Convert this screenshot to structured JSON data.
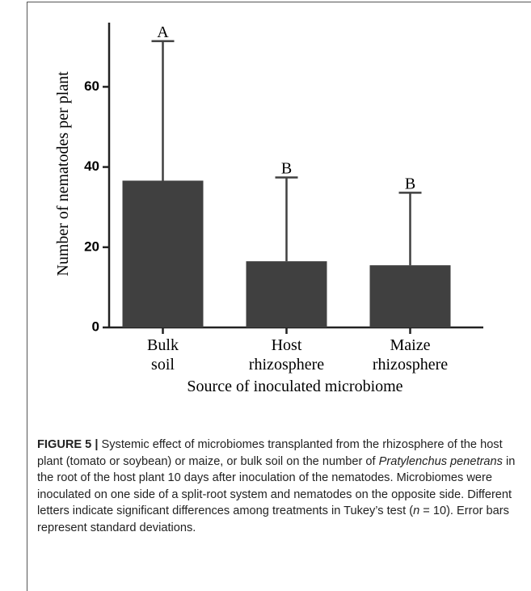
{
  "chart_data": {
    "type": "bar",
    "categories": [
      "Bulk soil",
      "Host rhizosphere",
      "Maize rhizosphere"
    ],
    "values": [
      36.6,
      16.5,
      15.5
    ],
    "errors": [
      34.8,
      20.9,
      18.1
    ],
    "letters": [
      "A",
      "B",
      "B"
    ],
    "color": "#404040",
    "xlabel": "Source of inoculated microbiome",
    "ylabel": "Number of nematodes per plant",
    "ylim": [
      0,
      76
    ],
    "yticks": [
      0,
      20,
      40,
      60
    ]
  },
  "caption": {
    "label": "FIGURE 5 |",
    "text1": " Systemic effect of microbiomes transplanted from the rhizosphere of the host plant (tomato or soybean) or maize, or bulk soil on the number of ",
    "italic1": "Pratylenchus penetrans",
    "text2": " in the root of the host plant 10 days after inoculation of the nematodes. Microbiomes were inoculated on one side of a split-root system and nematodes on the opposite side. Different letters indicate significant differences among treatments in Tukey’s test (",
    "italic2": "n",
    "text3": " = 10). Error bars represent standard deviations."
  }
}
